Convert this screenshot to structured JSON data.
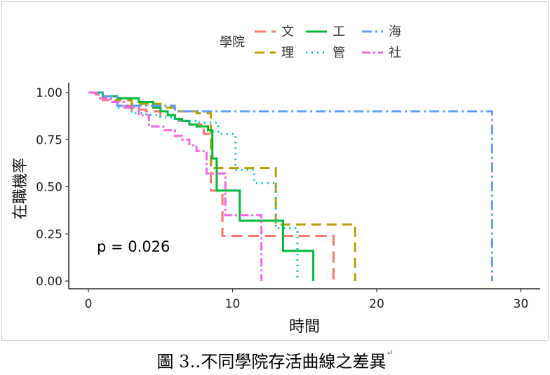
{
  "caption": {
    "text": "圖 3‥不同學院存活曲線之差異",
    "mark": "↵"
  },
  "chart_data": {
    "type": "line",
    "subtype": "kaplan-meier step",
    "xlabel": "時間",
    "ylabel": "在職機率",
    "xlim": [
      0,
      30
    ],
    "ylim": [
      0,
      1
    ],
    "x_ticks": [
      0,
      10,
      20,
      30
    ],
    "x_tick_labels": [
      "0",
      "10",
      "20",
      "30"
    ],
    "y_ticks": [
      0,
      0.25,
      0.5,
      0.75,
      1
    ],
    "y_tick_labels": [
      "0.00",
      "0.25",
      "0.50",
      "0.75",
      "1.00"
    ],
    "grid": false,
    "legend": {
      "title": "學院",
      "placement": "top"
    },
    "annotation": "p = 0.026",
    "series": [
      {
        "name": "文",
        "color": "#F8766D",
        "dash": "16 8",
        "x": [
          0,
          0.5,
          1,
          2,
          3,
          4,
          5,
          6,
          7,
          8,
          8.5,
          9.3,
          17.0
        ],
        "y": [
          1.0,
          0.99,
          0.96,
          0.93,
          0.91,
          0.9,
          0.88,
          0.85,
          0.83,
          0.78,
          0.48,
          0.24,
          0.0
        ]
      },
      {
        "name": "理",
        "color": "#B79F00",
        "dash": "14 8",
        "x": [
          0,
          1,
          2,
          3,
          5,
          6,
          7.5,
          8.5,
          9.5,
          13.0,
          18.5
        ],
        "y": [
          1.0,
          0.98,
          0.96,
          0.94,
          0.92,
          0.9,
          0.89,
          0.6,
          0.6,
          0.3,
          0.0
        ]
      },
      {
        "name": "工",
        "color": "#00BA38",
        "dash": "",
        "x": [
          0,
          1,
          2,
          3.5,
          4.5,
          5,
          5.5,
          6,
          6.5,
          7,
          7.5,
          8.3,
          8.6,
          8.9,
          10.5,
          13.5,
          15.6
        ],
        "y": [
          1.0,
          0.98,
          0.97,
          0.95,
          0.92,
          0.9,
          0.88,
          0.86,
          0.85,
          0.83,
          0.82,
          0.8,
          0.65,
          0.48,
          0.32,
          0.16,
          0.0
        ]
      },
      {
        "name": "管",
        "color": "#00BFC4",
        "dash": "2 6",
        "x": [
          0,
          1,
          2,
          3,
          4,
          5,
          6,
          7.5,
          9,
          10.2,
          11.5,
          13.0,
          14.5
        ],
        "y": [
          1.0,
          0.97,
          0.92,
          0.89,
          0.88,
          0.87,
          0.85,
          0.84,
          0.78,
          0.59,
          0.52,
          0.28,
          0.0
        ]
      },
      {
        "name": "海",
        "color": "#619CFF",
        "dash": "14 5 3 5",
        "x": [
          0,
          1,
          2,
          6,
          28.0
        ],
        "y": [
          1.0,
          0.98,
          0.93,
          0.9,
          0.0
        ]
      },
      {
        "name": "社",
        "color": "#F564E3",
        "dash": "12 4 3 4",
        "x": [
          0,
          0.7,
          1.5,
          2.5,
          3.5,
          4.2,
          5.2,
          6.0,
          6.5,
          7.0,
          7.5,
          8.2,
          9.5,
          12.0
        ],
        "y": [
          1.0,
          0.97,
          0.95,
          0.92,
          0.88,
          0.82,
          0.8,
          0.77,
          0.75,
          0.72,
          0.69,
          0.57,
          0.35,
          0.0
        ]
      }
    ]
  }
}
